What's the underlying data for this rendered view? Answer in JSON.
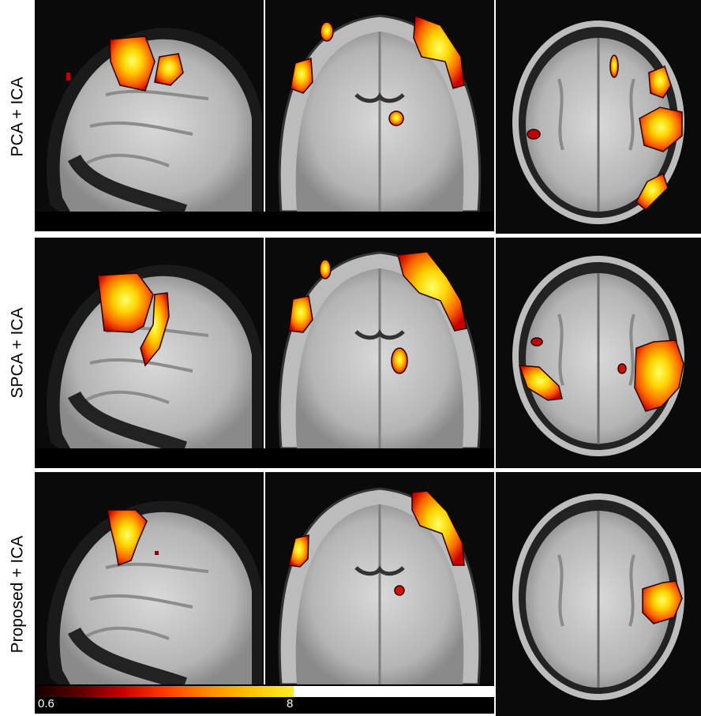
{
  "rows": [
    {
      "label": "PCA + ICA"
    },
    {
      "label": "SPCA  + ICA"
    },
    {
      "label": "Proposed + ICA"
    }
  ],
  "colorbar": {
    "min_label": "0.6",
    "max_label": "8",
    "colors": [
      "#120000",
      "#5a0000",
      "#c20000",
      "#ff3a00",
      "#ff8a00",
      "#ffc200",
      "#ffee2a"
    ]
  },
  "views": [
    "sagittal",
    "coronal",
    "axial"
  ]
}
